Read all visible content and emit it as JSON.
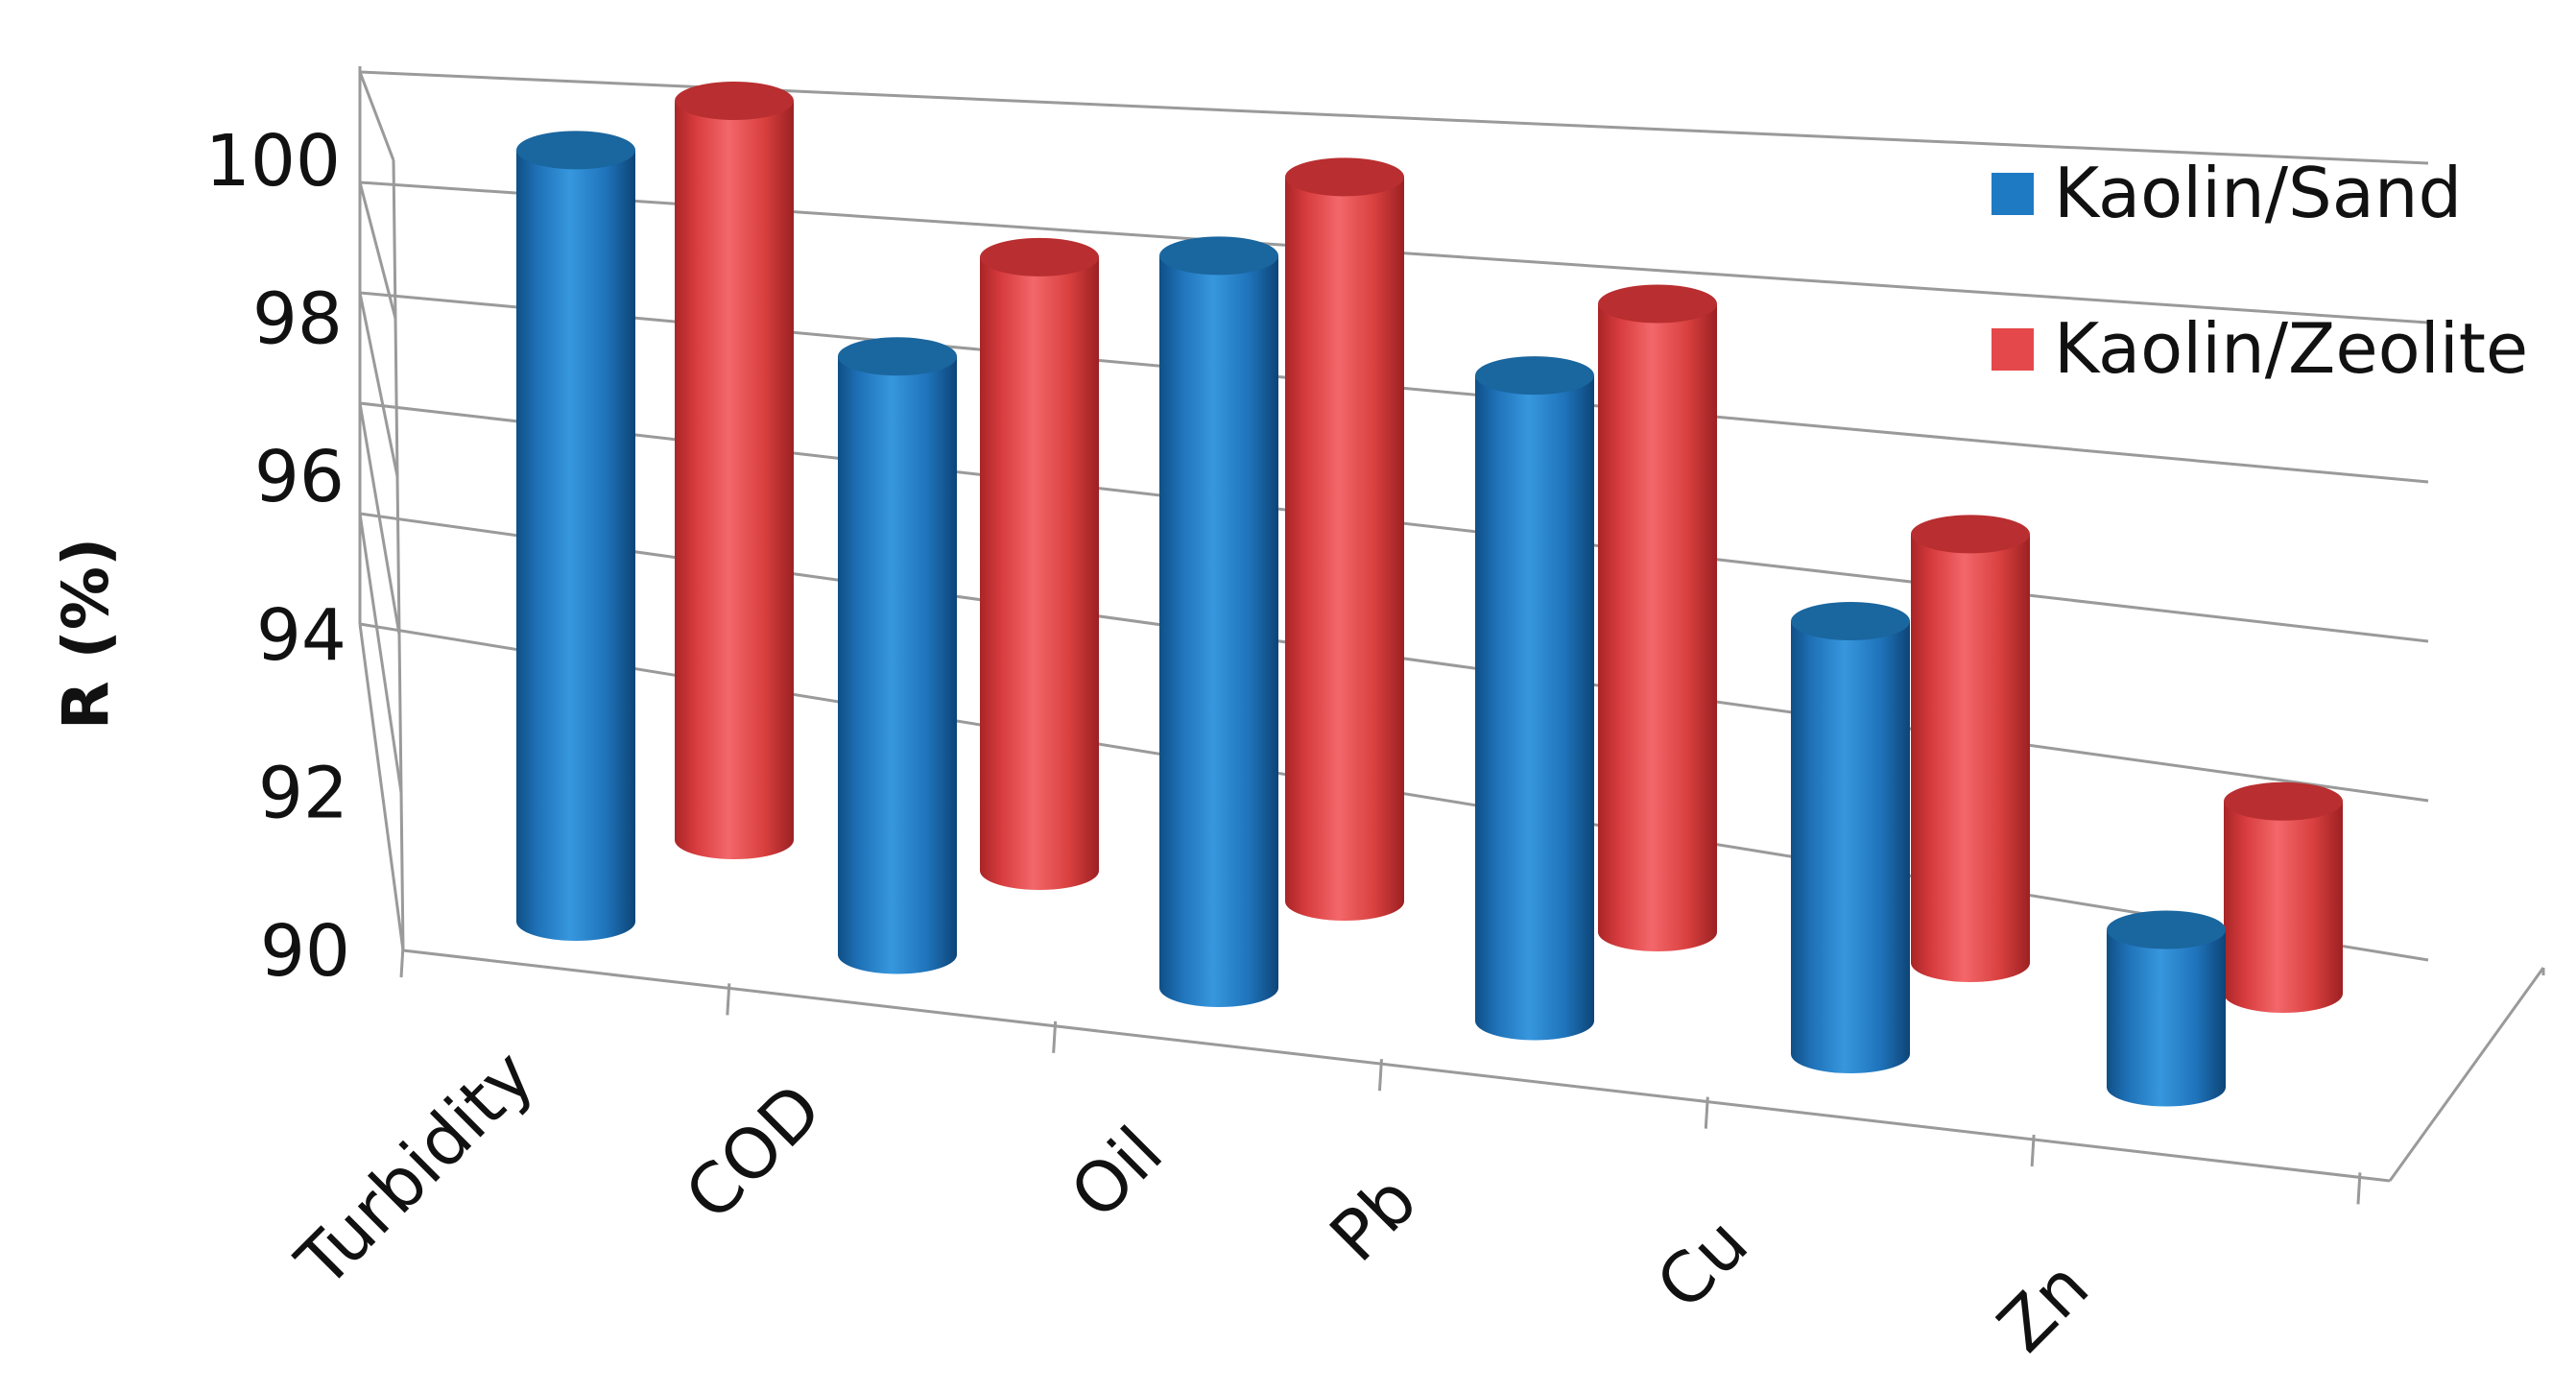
{
  "chart_data": {
    "type": "bar",
    "style": "3d-cylinder",
    "title": "",
    "xlabel": "",
    "ylabel": "R (%)",
    "ylim": [
      90,
      100
    ],
    "yticks": [
      "90",
      "92",
      "94",
      "96",
      "98",
      "100"
    ],
    "categories": [
      "Turbidity",
      "COD",
      "Oil",
      "Pb",
      "Cu",
      "Zn"
    ],
    "series": [
      {
        "name": "Kaolin/Sand",
        "color": "#1f7ac4",
        "values": [
          99.8,
          97.6,
          99.3,
          98.2,
          95.5,
          92.0
        ]
      },
      {
        "name": "Kaolin/Zeolite",
        "color": "#e5484a",
        "values": [
          100.0,
          98.3,
          99.8,
          98.5,
          95.8,
          92.6
        ]
      }
    ],
    "legend": "right",
    "grid": true
  }
}
